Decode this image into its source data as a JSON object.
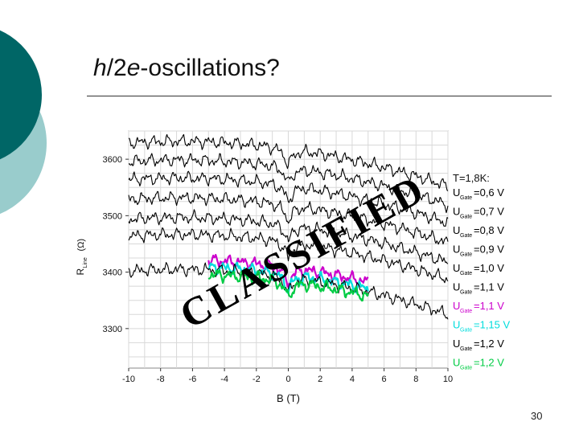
{
  "slide": {
    "title_italic_1": "h",
    "title_plain_1": "/2",
    "title_italic_2": "e",
    "title_plain_2": "-oscillations?",
    "page_number": "30",
    "stamp_text": "CLASSIFIED"
  },
  "colors": {
    "deco_dark": "#006666",
    "deco_light": "#99cccc",
    "trace_black": "#000000",
    "trace_magenta": "#cc00cc",
    "trace_cyan": "#00dddd",
    "trace_green": "#00cc44",
    "stamp": "#000000"
  },
  "chart_data": {
    "type": "line",
    "x_axis_label": "B (T)",
    "y_axis_label_main": "R",
    "y_axis_label_sub": "Line",
    "y_axis_label_unit": "(Ω)",
    "xlim": [
      -10,
      10
    ],
    "ylim": [
      3230,
      3650
    ],
    "x_ticks": [
      "-10",
      "-8",
      "-6",
      "-4",
      "-2",
      "0",
      "2",
      "4",
      "6",
      "8",
      "10"
    ],
    "y_ticks": [
      "3300",
      "3400",
      "3500",
      "3600"
    ],
    "y_tick_values": [
      3300,
      3400,
      3500,
      3600
    ],
    "grid": true,
    "legend_position": "right",
    "legend_header": "T=1,8K:",
    "series": [
      {
        "name_u": "U",
        "name_sub": "Gate",
        "name_val": "=0,6 V",
        "color": "#000000",
        "base": 3605,
        "x_min": -10,
        "x_max": 10
      },
      {
        "name_u": "U",
        "name_sub": "Gate",
        "name_val": "=0,7 V",
        "color": "#000000",
        "base": 3572,
        "x_min": -10,
        "x_max": 10
      },
      {
        "name_u": "U",
        "name_sub": "Gate",
        "name_val": "=0,8 V",
        "color": "#000000",
        "base": 3540,
        "x_min": -10,
        "x_max": 10
      },
      {
        "name_u": "U",
        "name_sub": "Gate",
        "name_val": "=0,9 V",
        "color": "#000000",
        "base": 3505,
        "x_min": -10,
        "x_max": 10
      },
      {
        "name_u": "U",
        "name_sub": "Gate",
        "name_val": "=1,0 V",
        "color": "#000000",
        "base": 3470,
        "x_min": -10,
        "x_max": 10
      },
      {
        "name_u": "U",
        "name_sub": "Gate",
        "name_val": "=1,1 V",
        "color": "#000000",
        "base": 3440,
        "x_min": -10,
        "x_max": 10
      },
      {
        "name_u": "U",
        "name_sub": "Gate",
        "name_val": "=1,1 V",
        "color": "#cc00cc",
        "base": 3395,
        "x_min": -5,
        "x_max": 5
      },
      {
        "name_u": "U",
        "name_sub": "Gate",
        "name_val": "=1,15 V",
        "color": "#00dddd",
        "base": 3383,
        "x_min": -5,
        "x_max": 5
      },
      {
        "name_u": "U",
        "name_sub": "Gate",
        "name_val": "=1,2 V",
        "color": "#000000",
        "base": 3378,
        "x_min": -10,
        "x_max": 10
      },
      {
        "name_u": "U",
        "name_sub": "Gate",
        "name_val": "=1,2 V",
        "color": "#00cc44",
        "base": 3370,
        "x_min": -5,
        "x_max": 5
      }
    ]
  }
}
